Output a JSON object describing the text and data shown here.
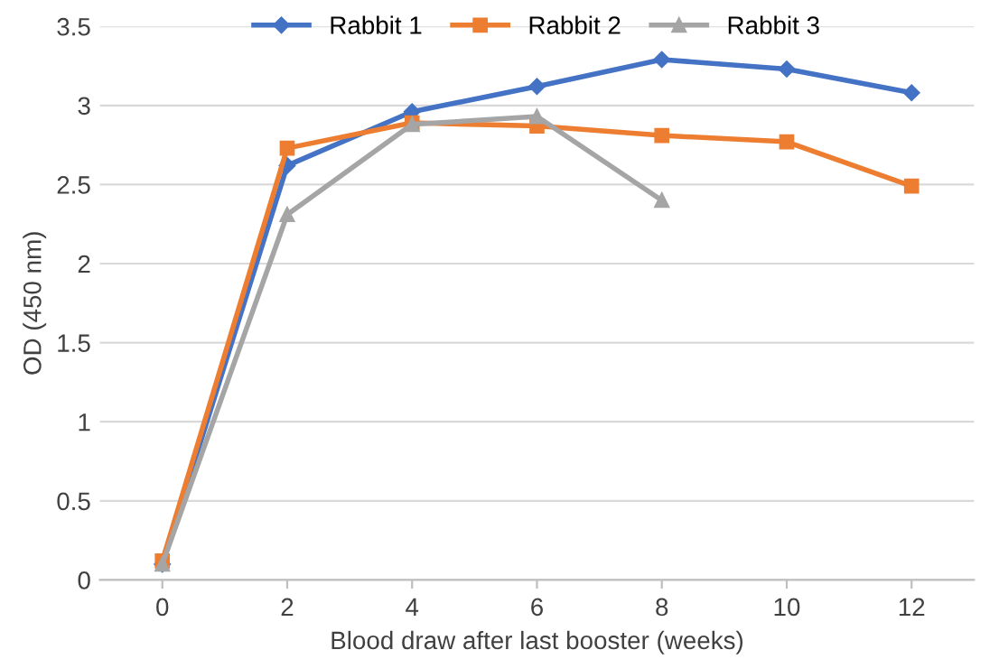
{
  "chart_data": {
    "type": "line",
    "xlabel": "Blood draw after last booster (weeks)",
    "ylabel": "OD (450 nm)",
    "categories": [
      "0",
      "2",
      "4",
      "6",
      "8",
      "10",
      "12"
    ],
    "series": [
      {
        "name": "Rabbit 1",
        "color": "#4472c4",
        "marker": "diamond",
        "values": [
          0.1,
          2.62,
          2.96,
          3.12,
          3.29,
          3.23,
          3.08
        ]
      },
      {
        "name": "Rabbit 2",
        "color": "#ed7d31",
        "marker": "square",
        "values": [
          0.12,
          2.73,
          2.89,
          2.87,
          2.81,
          2.77,
          2.49
        ]
      },
      {
        "name": "Rabbit 3",
        "color": "#a5a5a5",
        "marker": "triangle",
        "values": [
          0.1,
          2.31,
          2.88,
          2.93,
          2.4,
          null,
          null
        ]
      }
    ],
    "ylim": [
      0,
      3.5
    ],
    "yticks": [
      0,
      0.5,
      1,
      1.5,
      2,
      2.5,
      3,
      3.5
    ],
    "grid": "y",
    "legend": "top",
    "line_style": "solid"
  }
}
